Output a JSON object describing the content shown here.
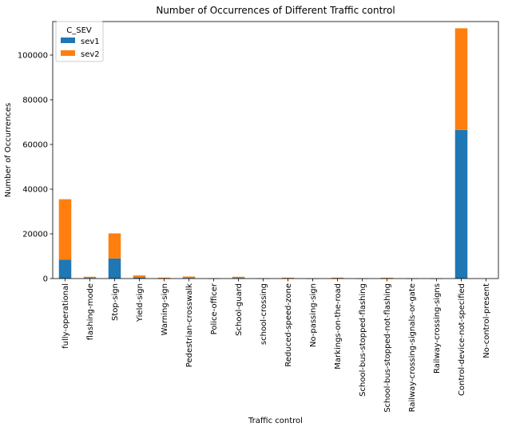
{
  "chart_data": {
    "type": "bar",
    "stacked": true,
    "title": "Number of Occurrences of Different Traffic control",
    "xlabel": "Traffic control",
    "ylabel": "Number of Occurrences",
    "ylim": [
      0,
      115000
    ],
    "yticks": [
      0,
      20000,
      40000,
      60000,
      80000,
      100000
    ],
    "ytick_labels": [
      "0",
      "20000",
      "40000",
      "60000",
      "80000",
      "100000"
    ],
    "grid": false,
    "legend": {
      "title": "C_SEV",
      "position": "top-left"
    },
    "categories": [
      "fully-operational",
      "flashing-mode",
      "Stop-sign",
      "Yield-sign",
      "Warning-sign",
      "Pedestrian-crosswalk",
      "Police-officer",
      "School-guard",
      "school-crossing",
      "Reduced-speed-zone",
      "No-passing-sign",
      "Markings-on-the-road",
      "School-bus-stopped-flashing",
      "School-bus-stopped-not-flashing",
      "Railway-crossing-signals-or-gate",
      "Railway-crossing-signs",
      "Control-device-not-specified",
      "No-control-present"
    ],
    "series": [
      {
        "name": "sev1",
        "color": "#1f77b4",
        "values": [
          8500,
          300,
          9000,
          500,
          100,
          300,
          50,
          300,
          50,
          200,
          20,
          200,
          20,
          150,
          20,
          20,
          66500,
          0
        ]
      },
      {
        "name": "sev2",
        "color": "#ff7f0e",
        "values": [
          27000,
          500,
          11200,
          900,
          300,
          600,
          50,
          500,
          60,
          200,
          30,
          200,
          30,
          200,
          40,
          30,
          45500,
          0
        ]
      }
    ]
  }
}
